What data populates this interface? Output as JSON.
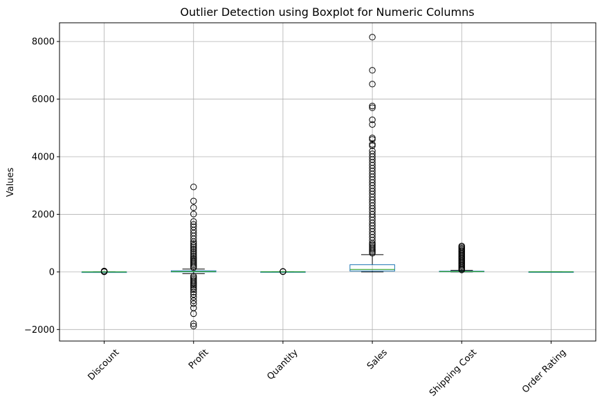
{
  "chart_data": {
    "type": "boxplot",
    "title": "Outlier Detection using Boxplot for Numeric Columns",
    "xlabel": "",
    "ylabel": "Values",
    "ylim": [
      -2400,
      8650
    ],
    "yticks": [
      -2000,
      0,
      2000,
      4000,
      6000,
      8000
    ],
    "yticklabels": [
      "−2000",
      "0",
      "2000",
      "4000",
      "6000",
      "8000"
    ],
    "categories": [
      "Discount",
      "Profit",
      "Quantity",
      "Sales",
      "Shipping Cost",
      "Order Rating"
    ],
    "grid": true,
    "legend": "none",
    "colors": {
      "box": "#1f77b4",
      "median": "#2ca02c",
      "whisker": "#000000",
      "outlier": "#000000",
      "grid": "#b0b0b0"
    },
    "boxes": [
      {
        "name": "Discount",
        "whislo": 0,
        "q1": 0,
        "med": 0.1,
        "q3": 0.2,
        "whishi": 0.5,
        "fliers": [
          5,
          10,
          15,
          20,
          25,
          30
        ]
      },
      {
        "name": "Profit",
        "whislo": -60,
        "q1": 0,
        "med": 10,
        "q3": 40,
        "whishi": 100,
        "fliers": [
          2950,
          2460,
          2230,
          2010,
          1750,
          1650,
          1560,
          1450,
          1350,
          1250,
          1150,
          1050,
          980,
          920,
          860,
          800,
          740,
          680,
          620,
          560,
          500,
          450,
          400,
          350,
          300,
          250,
          200,
          150,
          -150,
          -200,
          -250,
          -300,
          -350,
          -400,
          -450,
          -500,
          -560,
          -620,
          -700,
          -780,
          -880,
          -1000,
          -1100,
          -1250,
          -1450,
          -1800,
          -1880
        ]
      },
      {
        "name": "Quantity",
        "whislo": 1,
        "q1": 2,
        "med": 3,
        "q3": 5,
        "whishi": 9,
        "fliers": [
          10,
          12,
          14,
          16
        ]
      },
      {
        "name": "Sales",
        "whislo": 0,
        "q1": 30,
        "med": 85,
        "q3": 250,
        "whishi": 600,
        "fliers": [
          8150,
          7000,
          6520,
          5760,
          5700,
          5280,
          5120,
          4650,
          4600,
          4430,
          4380,
          4200,
          4100,
          4000,
          3900,
          3800,
          3700,
          3600,
          3500,
          3400,
          3300,
          3200,
          3100,
          3000,
          2900,
          2800,
          2700,
          2600,
          2500,
          2400,
          2300,
          2200,
          2100,
          2000,
          1900,
          1800,
          1700,
          1600,
          1500,
          1400,
          1300,
          1200,
          1100,
          1000,
          950,
          900,
          850,
          800,
          750,
          700,
          650
        ]
      },
      {
        "name": "Shipping Cost",
        "whislo": 0,
        "q1": 5,
        "med": 10,
        "q3": 25,
        "whishi": 55,
        "fliers": [
          900,
          860,
          820,
          780,
          740,
          700,
          660,
          620,
          580,
          540,
          500,
          460,
          420,
          380,
          340,
          300,
          260,
          220,
          180,
          140,
          100,
          70
        ]
      },
      {
        "name": "Order Rating",
        "whislo": 1,
        "q1": 2,
        "med": 3,
        "q3": 4,
        "whishi": 5,
        "fliers": []
      }
    ]
  }
}
